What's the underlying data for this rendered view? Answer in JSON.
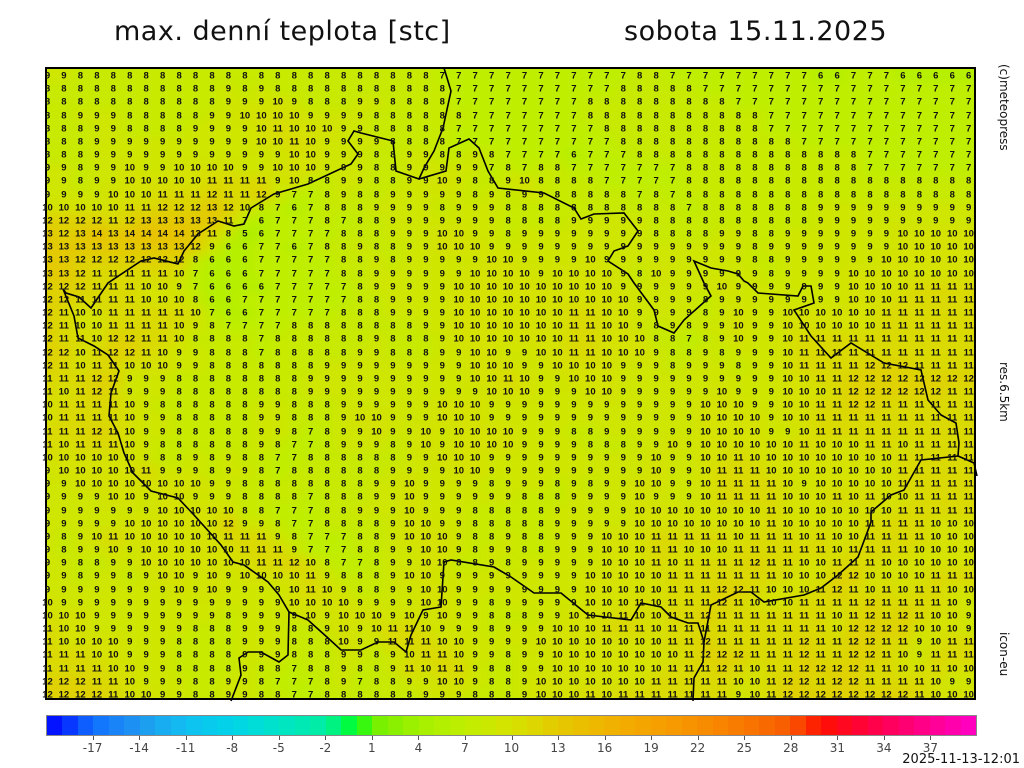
{
  "header": {
    "title": "max. denní teplota [stc]",
    "date": "sobota 15.11.2025"
  },
  "side_labels": {
    "copyright": "(c)meteopress",
    "resolution": "res.6.5km",
    "model": "icon-eu"
  },
  "timestamp": "2025-11-13-12:01",
  "colorbar": {
    "min": -20,
    "max": 40,
    "tick_labels": [
      "-17",
      "-14",
      "-11",
      "-8",
      "-5",
      "-2",
      "1",
      "4",
      "7",
      "10",
      "13",
      "16",
      "19",
      "22",
      "25",
      "28",
      "31",
      "34",
      "37"
    ],
    "colors": {
      "-20": "#0000ff",
      "-17": "#1070ff",
      "-14": "#2098f0",
      "-11": "#10bff0",
      "-8": "#00d4e8",
      "-5": "#00e4c8",
      "-2": "#00eea0",
      "0": "#00ff20",
      "1": "#70f000",
      "4": "#a4f000",
      "7": "#c0ee00",
      "10": "#d6e200",
      "13": "#e4ca00",
      "16": "#f0b400",
      "19": "#f5a200",
      "22": "#f89000",
      "25": "#f87800",
      "28": "#f85a00",
      "30": "#ff1000",
      "33": "#ff0040",
      "37": "#ff0090",
      "40": "#ff00c8"
    }
  },
  "line_color": "#000000",
  "grid": {
    "unit": "°C",
    "rows": [
      "9 9 8 8 8 8 8 8 8 8 8 8 8 8 8 8 8 8 8 8 8 8 8 8 7 7 7 7 7 7 7 7 7 7 7 7 8 8 7 7 7 7 7 7 7 7 7 6 6 7 7 7 6 6 6 6 6",
      "8 8 8 8 8 8 8 8 8 8 8 9 8 9 8 8 8 8 8 8 8 8 8 8 8 7 7 7 7 7 7 7 7 7 7 8 8 8 8 8 7 7 7 7 7 7 7 7 7 7 7 7 7 7 7 7 7",
      "8 8 8 8 8 8 8 8 8 8 8 9 9 9 10 9 8 8 8 9 9 8 8 8 8 7 7 7 7 7 7 7 7 8 8 8 8 8 8 8 8 8 7 7 7 7 7 7 7 7 7 7 7 7 7 7 7",
      "8 8 9 9 9 8 8 8 8 8 9 9 10 10 10 10 9 9 9 9 8 8 8 8 8 8 7 7 7 7 7 7 7 8 8 8 8 8 8 8 8 8 8 8 7 7 7 7 7 7 7 7 7 7 7 7 7",
      "8 8 8 9 9 8 8 8 8 9 9 9 9 10 11 10 10 10 9 9 8 8 8 8 8 7 7 7 7 7 7 7 7 7 8 8 8 8 8 8 8 8 8 8 7 7 7 7 7 7 7 7 7 7 7 7 7",
      "8 8 8 9 9 9 9 9 9 9 9 9 9 10 10 11 10 9 9 9 9 8 8 8 8 7 7 7 7 7 7 7 7 7 7 8 8 8 8 8 8 8 8 8 8 8 7 7 7 7 7 7 7 7 7 7 7",
      "8 8 8 9 9 9 9 9 9 9 9 9 9 9 9 10 10 9 9 9 8 8 9 9 8 8 9 8 7 7 7 7 6 7 7 7 8 8 8 8 8 8 8 8 8 8 8 8 8 8 7 7 7 7 7 7 7",
      "9 9 8 9 9 10 9 9 10 10 10 10 9 9 10 10 10 9 9 9 8 8 9 9 9 9 9 7 8 7 8 8 7 7 7 7 7 7 7 8 8 8 8 8 8 8 8 8 8 8 7 7 7 7 7 7 7",
      "9 9 8 9 9 10 10 10 10 10 11 11 11 11 9 10 8 8 9 9 8 8 9 9 10 9 8 8 9 10 8 8 8 8 7 7 7 7 7 8 8 8 8 8 8 8 8 8 8 8 8 8 8 8 8 8 8",
      "9 9 9 9 10 10 10 11 11 11 12 11 11 12 9 7 7 8 9 8 8 9 9 9 9 9 8 9 8 9 9 8 8 8 8 8 7 8 7 8 8 8 8 8 8 8 8 8 8 8 8 8 8 8 8 8 8",
      "10 10 10 10 10 11 11 12 12 12 13 12 10 8 7 6 7 8 8 8 9 9 9 9 8 9 9 9 8 8 8 8 8 8 8 8 8 8 8 7 8 8 8 8 8 8 8 9 9 9 9 9 9 9 9 9 9",
      "12 12 12 12 11 12 13 13 13 13 13 11 7 6 7 7 7 8 7 8 8 9 9 9 9 9 9 9 8 8 8 8 9 9 9 9 9 8 8 8 8 8 8 8 8 8 8 9 9 9 9 9 9 9 9 9 9",
      "13 12 13 14 13 14 14 14 14 13 11 8 5 6 7 7 7 7 8 8 8 9 9 9 10 10 9 9 8 9 9 9 9 9 9 9 9 8 8 8 8 9 9 8 8 9 9 9 9 9 9 9 10 10 10 10 10",
      "13 13 13 13 13 13 13 13 13 12 9 6 6 7 7 6 7 8 8 9 8 8 9 9 10 10 10 9 9 9 9 9 9 9 9 9 9 9 9 9 9 9 9 8 9 9 9 9 9 9 9 9 10 10 10 10 10",
      "13 13 12 12 12 12 12 12 12 8 6 6 6 7 7 7 7 7 8 8 9 8 9 9 9 9 9 10 10 9 9 9 9 10 9 9 9 9 9 9 9 9 9 8 8 9 9 9 9 9 9 10 10 10 10 10 10",
      "13 13 12 11 11 11 11 11 10 7 6 6 6 7 7 7 7 7 8 8 9 9 9 9 9 9 10 10 10 10 9 10 10 10 10 9 8 10 9 9 9 9 9 9 8 9 9 9 9 10 10 10 10 10 10 10 10",
      "12 12 12 11 11 11 10 10 9 7 6 6 6 6 7 7 7 7 7 8 9 9 9 9 9 10 10 10 10 10 10 10 10 10 10 9 9 9 9 9 9 10 9 9 9 9 9 9 9 10 10 10 10 11 11 11 11",
      "12 12 11 11 11 11 10 10 10 8 6 6 7 7 7 7 7 7 7 8 8 9 9 9 9 10 10 10 10 10 10 10 10 10 10 10 9 9 9 9 8 9 9 9 9 9 9 9 9 10 10 10 11 11 11 11 11",
      "12 11 10 10 11 11 11 11 11 10 7 6 6 7 7 7 7 7 8 8 8 9 9 9 9 10 10 10 10 10 10 10 11 11 10 10 9 9 9 9 8 9 10 9 9 10 10 10 10 10 10 11 11 11 11 11 11",
      "12 11 10 10 11 11 11 11 10 9 8 7 7 7 7 8 8 8 8 8 8 8 8 9 9 10 10 10 10 10 10 10 11 11 10 10 9 8 9 8 9 9 10 9 9 10 10 10 10 10 10 11 11 11 11 11 11",
      "12 11 11 10 12 12 11 11 10 8 8 8 8 7 8 8 8 8 8 8 9 8 8 8 9 10 10 10 10 10 10 10 11 11 10 10 10 8 8 7 8 9 10 9 9 10 11 11 11 11 11 11 11 11 11 11 11",
      "12 12 10 11 12 12 11 10 9 9 8 8 8 7 8 8 8 8 8 9 9 8 8 8 9 9 10 10 9 9 10 10 11 11 10 10 10 9 8 8 9 8 9 9 9 10 11 11 11 11 11 11 11 11 11 11 11",
      "12 11 10 11 11 10 10 10 9 9 8 8 8 8 8 8 8 9 9 9 9 9 9 9 9 9 10 10 10 9 9 10 10 10 10 9 9 9 8 9 9 9 8 9 9 10 11 11 11 11 12 12 12 11 11 11 11",
      "11 11 11 12 12 9 9 9 8 8 8 8 8 8 8 8 9 9 9 9 9 9 9 9 9 9 10 10 11 10 9 9 10 10 10 9 9 9 9 9 9 9 9 9 9 10 10 11 11 12 12 12 12 12 12 12 12",
      "11 10 11 12 11 9 9 9 8 8 8 8 8 8 8 8 9 9 9 9 9 9 9 9 9 9 9 10 10 10 9 9 9 10 10 9 9 9 9 9 9 10 9 9 9 10 10 10 11 12 12 12 12 12 12 11 11",
      "10 11 11 11 11 10 9 8 8 8 8 8 8 9 9 8 8 8 9 9 9 9 9 9 10 10 10 9 9 9 9 9 9 9 9 9 9 9 9 9 10 10 10 9 9 10 10 11 11 12 12 11 11 11 11 11 11",
      "10 11 11 11 11 10 9 9 8 8 8 8 8 9 9 8 8 8 9 10 10 9 9 9 10 10 10 9 9 9 9 9 9 9 9 9 9 9 9 9 10 10 10 10 9 10 10 11 11 11 11 11 11 11 11 11 11",
      "11 11 11 12 11 10 9 9 8 8 8 8 8 9 9 8 7 8 9 9 10 9 9 10 9 10 10 10 10 9 9 9 8 8 9 9 9 9 9 9 10 10 10 10 9 9 10 11 11 11 11 11 11 11 11 11 11",
      "11 10 11 11 11 10 9 8 8 8 8 8 8 9 8 7 7 8 9 9 9 8 9 10 9 10 10 10 10 9 9 9 9 8 8 8 9 9 10 9 10 10 10 10 10 10 11 10 10 10 11 11 10 11 11 11 11",
      "10 10 10 10 10 10 9 8 8 9 8 9 8 8 7 7 8 8 8 8 8 8 9 9 10 10 10 9 9 9 9 9 9 9 9 9 9 10 9 9 10 10 11 10 10 10 10 10 10 10 10 10 11 11 11 11 11",
      "9 10 10 10 10 10 11 9 9 9 8 9 9 8 7 8 8 8 8 8 8 9 9 9 9 10 10 9 9 9 9 9 9 9 9 9 9 10 9 9 10 11 11 11 10 10 10 10 10 10 10 10 11 11 11 11 11",
      "9 9 10 10 10 10 10 10 10 10 9 9 8 8 8 8 8 8 8 8 9 9 10 9 9 9 9 8 9 9 9 8 9 8 9 9 10 10 9 9 10 11 11 11 11 10 9 10 10 10 10 10 11 11 11 11 11",
      "9 9 9 9 10 10 9 10 10 9 9 9 8 8 8 8 7 8 8 8 9 9 10 9 9 9 9 9 9 8 8 8 9 9 9 9 10 9 9 9 10 11 11 11 11 10 10 10 11 10 11 10 10 11 11 11 11",
      "9 9 9 9 9 9 9 10 10 10 10 10 8 8 7 7 7 8 8 9 9 9 10 9 9 9 8 8 8 8 8 9 9 9 9 9 10 10 10 10 10 10 10 10 11 10 10 10 10 10 10 10 11 11 11 11 11",
      "9 9 9 9 9 10 10 10 10 10 10 12 9 9 8 7 7 8 8 8 8 9 10 10 9 9 8 8 8 8 8 9 9 9 9 9 10 10 10 10 10 10 10 10 11 10 10 10 10 10 11 11 11 11 10 10 10",
      "9 8 9 10 11 10 10 10 10 10 10 11 11 11 9 8 7 7 7 8 8 9 10 10 10 9 8 8 9 8 8 9 9 9 10 10 10 11 11 11 11 11 10 11 11 11 10 11 10 10 11 11 11 11 10 10 10",
      "9 8 9 9 10 9 10 10 10 10 10 10 11 11 11 9 7 7 7 8 8 9 9 10 10 9 8 9 9 8 8 9 9 9 10 10 10 11 11 10 10 10 11 11 11 11 11 11 10 11 11 11 11 10 10 10 10",
      "9 9 8 8 9 9 10 10 10 10 10 10 10 11 11 12 10 8 7 7 8 9 9 10 10 8 8 9 8 9 9 9 9 9 10 10 10 11 10 11 11 11 11 12 11 11 10 10 11 11 11 10 10 10 10 10 10",
      "9 9 8 9 9 8 9 10 10 9 10 9 10 10 10 10 11 9 8 8 8 9 10 10 9 9 9 9 9 9 9 9 9 10 10 10 10 10 11 11 11 11 11 11 11 10 10 10 12 12 10 10 10 10 11 11 11",
      "9 9 9 9 9 9 9 9 10 9 10 9 9 9 9 10 11 10 9 8 8 9 9 10 10 9 9 9 9 9 9 9 9 10 10 10 10 10 11 11 11 12 12 11 10 10 10 11 12 11 10 11 10 11 11 10 10",
      "10 9 9 9 9 9 9 9 9 9 9 9 9 9 9 10 10 10 10 9 9 9 9 10 10 9 9 8 9 9 9 9 9 10 10 10 11 10 11 11 11 12 11 10 10 10 11 11 11 11 12 11 11 11 11 10 9",
      "10 10 10 9 9 9 9 9 9 9 9 8 9 9 9 9 10 9 10 10 10 9 10 9 10 9 9 8 8 8 9 9 10 10 10 11 10 10 11 11 12 11 11 11 11 11 11 11 10 11 12 11 12 11 10 10 9",
      "11 10 10 9 9 9 9 9 9 8 8 8 9 9 9 8 8 9 10 9 10 11 11 10 9 9 9 8 9 9 9 10 10 10 11 11 11 10 11 11 11 11 11 11 11 11 11 11 10 12 12 12 12 10 10 10 9",
      "11 10 10 10 10 9 9 9 8 8 8 8 9 9 9 8 8 8 10 9 9 11 11 11 10 10 9 9 9 9 10 10 10 10 10 10 10 10 11 11 12 11 11 11 11 11 12 11 11 12 12 11 11 9 10 11 11",
      "11 11 11 10 10 9 9 9 8 8 8 8 9 9 9 8 8 8 9 9 8 9 10 11 11 10 9 9 8 9 9 10 10 10 10 10 10 10 10 11 12 12 12 11 11 11 12 11 11 12 12 11 10 9 11 11 11",
      "11 11 11 11 10 10 9 9 8 8 8 8 9 8 8 7 8 8 9 8 8 9 11 10 11 11 9 8 8 9 9 10 10 10 10 10 10 10 11 11 11 12 11 10 11 11 12 12 12 12 11 11 10 10 11 10 10",
      "12 12 12 11 11 10 9 9 9 8 8 9 9 8 7 7 7 8 9 7 8 8 9 9 10 10 9 8 8 9 10 10 10 10 10 10 10 11 11 11 11 11 10 10 11 12 12 11 12 12 11 11 11 11 10 9 9",
      "12 12 12 12 11 10 10 9 9 8 8 9 9 8 8 7 7 8 8 8 8 8 8 9 9 9 8 8 8 9 10 10 10 11 10 11 11 11 11 11 11 11 9 10 11 12 12 12 12 12 12 12 12 11 10 10 10"
    ]
  }
}
